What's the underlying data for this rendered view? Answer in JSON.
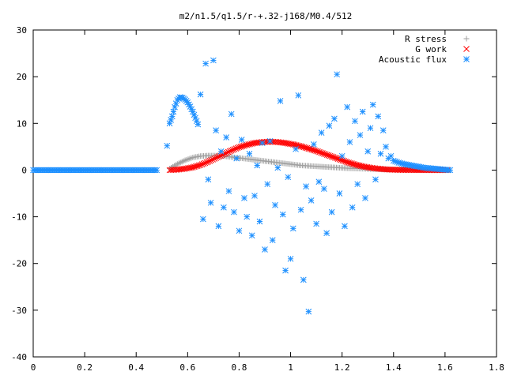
{
  "chart_data": {
    "type": "scatter",
    "title": "m2/n1.5/q1.5/r-+.32-j168/M0.4/512",
    "xlabel": "",
    "ylabel": "",
    "xlim": [
      0,
      1.8
    ],
    "ylim": [
      -40,
      30
    ],
    "x_ticks": [
      "0",
      "0.2",
      "0.4",
      "0.6",
      "0.8",
      "1",
      "1.2",
      "1.4",
      "1.6",
      "1.8"
    ],
    "x_tick_values": [
      0,
      0.2,
      0.4,
      0.6,
      0.8,
      1.0,
      1.2,
      1.4,
      1.6,
      1.8
    ],
    "y_ticks": [
      "-40",
      "-30",
      "-20",
      "-10",
      "0",
      "10",
      "20",
      "30"
    ],
    "y_tick_values": [
      -40,
      -30,
      -20,
      -10,
      0,
      10,
      20,
      30
    ],
    "grid": false,
    "legend_position": "top-right",
    "series": [
      {
        "name": "R stress",
        "marker": "plus",
        "color": "#a0a0a0",
        "x": [
          0.53,
          0.56,
          0.59,
          0.62,
          0.65,
          0.68,
          0.71,
          0.74,
          0.77,
          0.8,
          0.83,
          0.86,
          0.89,
          0.92,
          0.95,
          0.98,
          1.01,
          1.04,
          1.07,
          1.1,
          1.13,
          1.16,
          1.19,
          1.22,
          1.25,
          1.28,
          1.31,
          1.34,
          1.37,
          1.4,
          1.43,
          1.46,
          1.49,
          1.52,
          1.55,
          1.58,
          1.61
        ],
        "y": [
          0.3,
          1.3,
          2.1,
          2.7,
          3.0,
          3.1,
          3.1,
          3.0,
          2.8,
          2.6,
          2.4,
          2.2,
          2.0,
          1.8,
          1.6,
          1.4,
          1.2,
          1.0,
          0.9,
          0.8,
          0.7,
          0.6,
          0.5,
          0.4,
          0.35,
          0.3,
          0.25,
          0.2,
          0.15,
          0.12,
          0.1,
          0.08,
          0.06,
          0.04,
          0.03,
          0.02,
          0.01
        ]
      },
      {
        "name": "G work",
        "marker": "cross",
        "color": "#ff0000",
        "x": [
          0.53,
          0.56,
          0.59,
          0.62,
          0.65,
          0.68,
          0.71,
          0.74,
          0.77,
          0.8,
          0.83,
          0.86,
          0.89,
          0.92,
          0.95,
          0.98,
          1.01,
          1.04,
          1.07,
          1.1,
          1.13,
          1.16,
          1.19,
          1.22,
          1.25,
          1.28,
          1.31,
          1.34,
          1.37,
          1.4,
          1.43,
          1.46,
          1.49,
          1.52,
          1.55,
          1.58,
          1.61
        ],
        "y": [
          0.0,
          0.1,
          0.3,
          0.6,
          1.1,
          1.8,
          2.6,
          3.4,
          4.2,
          4.9,
          5.4,
          5.8,
          6.0,
          6.1,
          6.0,
          5.8,
          5.5,
          5.1,
          4.6,
          4.1,
          3.5,
          2.9,
          2.3,
          1.7,
          1.2,
          0.8,
          0.5,
          0.3,
          0.15,
          0.08,
          0.04,
          0.02,
          0.01,
          0.0,
          0.0,
          0.0,
          0.0
        ]
      },
      {
        "name": "Acoustic flux",
        "marker": "star",
        "color": "#1e90ff",
        "x": [
          0.0,
          0.04,
          0.08,
          0.12,
          0.16,
          0.2,
          0.24,
          0.28,
          0.32,
          0.36,
          0.4,
          0.44,
          0.48,
          0.52,
          0.53,
          0.54,
          0.55,
          0.56,
          0.57,
          0.58,
          0.59,
          0.6,
          0.61,
          0.62,
          0.63,
          0.64,
          0.65,
          0.66,
          0.67,
          0.68,
          0.69,
          0.7,
          0.71,
          0.72,
          0.73,
          0.74,
          0.75,
          0.76,
          0.77,
          0.78,
          0.79,
          0.8,
          0.81,
          0.82,
          0.83,
          0.84,
          0.85,
          0.86,
          0.87,
          0.88,
          0.89,
          0.9,
          0.91,
          0.92,
          0.93,
          0.94,
          0.95,
          0.96,
          0.97,
          0.98,
          0.99,
          1.0,
          1.01,
          1.02,
          1.03,
          1.04,
          1.05,
          1.06,
          1.07,
          1.08,
          1.09,
          1.1,
          1.11,
          1.12,
          1.13,
          1.14,
          1.15,
          1.16,
          1.17,
          1.18,
          1.19,
          1.2,
          1.21,
          1.22,
          1.23,
          1.24,
          1.25,
          1.26,
          1.27,
          1.28,
          1.29,
          1.3,
          1.31,
          1.32,
          1.33,
          1.34,
          1.35,
          1.36,
          1.37,
          1.38,
          1.39,
          1.4,
          1.42,
          1.44,
          1.46,
          1.48,
          1.5,
          1.52,
          1.54,
          1.56,
          1.58,
          1.6,
          1.62
        ],
        "y": [
          0.0,
          0.0,
          0.0,
          0.0,
          0.0,
          0.0,
          0.0,
          0.0,
          0.0,
          0.0,
          0.0,
          0.0,
          0.0,
          5.2,
          10.0,
          11.5,
          13.5,
          15.0,
          15.6,
          15.5,
          15.1,
          14.5,
          13.6,
          12.5,
          11.2,
          9.8,
          16.2,
          -10.5,
          22.8,
          -2.0,
          -7.0,
          23.5,
          8.5,
          -12.0,
          4.0,
          -8.0,
          7.0,
          -4.5,
          12.0,
          -9.0,
          2.5,
          -13.0,
          6.5,
          -6.0,
          -10.0,
          3.5,
          -14.0,
          -5.5,
          1.0,
          -11.0,
          5.8,
          -17.0,
          -3.0,
          6.2,
          -15.0,
          -7.5,
          0.5,
          14.8,
          -9.5,
          -21.5,
          -1.5,
          -19.0,
          -12.5,
          4.5,
          16.0,
          -8.5,
          -23.5,
          -3.5,
          -30.3,
          -6.5,
          5.5,
          -11.5,
          -2.5,
          8.0,
          -4.0,
          -13.5,
          9.5,
          -9.0,
          11.0,
          20.5,
          -5.0,
          3.0,
          -12.0,
          13.5,
          6.0,
          -8.0,
          10.5,
          -3.0,
          7.5,
          12.5,
          -6.0,
          4.0,
          9.0,
          14.0,
          -2.0,
          11.5,
          3.5,
          8.5,
          5.0,
          2.5,
          3.0,
          2.0,
          1.6,
          1.3,
          1.1,
          0.9,
          0.7,
          0.5,
          0.4,
          0.3,
          0.2,
          0.1,
          0.0
        ]
      }
    ]
  }
}
